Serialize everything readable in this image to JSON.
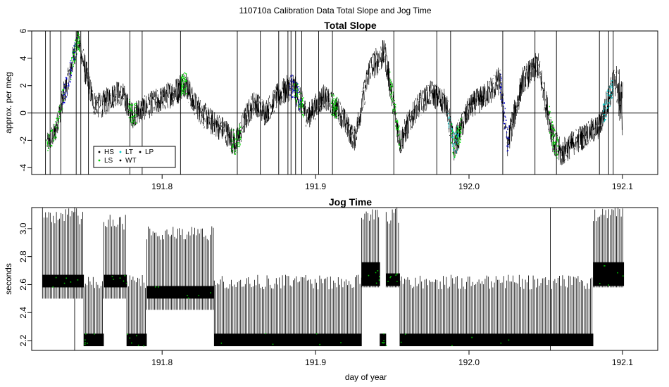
{
  "figure": {
    "title": "110710a   Calibration Data Total Slope and Jog Time"
  },
  "chart_data": [
    {
      "type": "line",
      "title": "Total Slope",
      "xlabel": "",
      "ylabel": "approx. per meg",
      "xlim": [
        191.715,
        192.123
      ],
      "ylim": [
        -4.5,
        6.0
      ],
      "x_ticks": [
        191.8,
        191.9,
        192.0,
        192.1
      ],
      "x_tick_labels": [
        "191.8",
        "191.9",
        "192.0",
        "192.1"
      ],
      "y_ticks": [
        -4,
        -2,
        0,
        2,
        4,
        6
      ],
      "y_tick_labels": [
        "-4",
        "-2",
        "0",
        "2",
        "4",
        "6"
      ],
      "reference_line_y": 0,
      "grid": false,
      "legend_position": "bottom-left",
      "legend": [
        {
          "name": "HS",
          "color": "#000000"
        },
        {
          "name": "LT",
          "color": "#00cccc"
        },
        {
          "name": "LP",
          "color": "#000000"
        },
        {
          "name": "LS",
          "color": "#00cc00"
        },
        {
          "name": "WT",
          "color": "#000000"
        }
      ],
      "series_color": "#000000",
      "highlight_colors": [
        "#00dd00",
        "#0000cc",
        "#00cccc"
      ],
      "envelope": {
        "x": [
          191.725,
          191.73,
          191.735,
          191.74,
          191.745,
          191.75,
          191.755,
          191.76,
          191.765,
          191.77,
          191.775,
          191.78,
          191.79,
          191.8,
          191.81,
          191.815,
          191.82,
          191.83,
          191.84,
          191.848,
          191.855,
          191.86,
          191.867,
          191.875,
          191.885,
          191.895,
          191.905,
          191.915,
          191.925,
          191.935,
          191.945,
          191.955,
          191.965,
          191.975,
          191.985,
          191.99,
          192.0,
          192.01,
          192.02,
          192.025,
          192.035,
          192.045,
          192.055,
          192.06,
          192.07,
          192.085,
          192.095,
          192.1
        ],
        "center": [
          -2.2,
          -1.5,
          1.0,
          3.0,
          5.5,
          3.0,
          0.8,
          0.5,
          1.0,
          1.5,
          1.2,
          -0.2,
          0.5,
          1.0,
          1.7,
          2.3,
          0.8,
          -0.5,
          -1.2,
          -2.3,
          -0.2,
          0.8,
          0.0,
          1.2,
          2.0,
          -0.3,
          1.2,
          0.2,
          -2.0,
          3.2,
          4.4,
          -2.2,
          0.3,
          1.5,
          0.7,
          -2.5,
          0.4,
          1.2,
          2.4,
          -2.2,
          2.4,
          3.5,
          -2.0,
          -3.0,
          -2.0,
          -1.0,
          2.6,
          0.3
        ],
        "half_width": [
          0.8,
          0.9,
          1.0,
          1.0,
          1.0,
          1.2,
          1.0,
          1.0,
          1.0,
          1.0,
          1.0,
          1.0,
          1.0,
          1.0,
          1.1,
          1.1,
          1.0,
          1.0,
          1.0,
          1.1,
          1.0,
          1.0,
          1.0,
          1.0,
          1.1,
          1.0,
          1.0,
          1.0,
          1.0,
          1.1,
          1.1,
          1.1,
          1.0,
          1.0,
          1.0,
          1.2,
          1.0,
          1.0,
          1.1,
          1.2,
          1.0,
          1.1,
          1.2,
          1.1,
          1.0,
          1.0,
          1.2,
          2.5
        ]
      },
      "highlight_segments": [
        {
          "x0": 191.724,
          "x1": 191.736,
          "color": "#00dd00"
        },
        {
          "x0": 191.735,
          "x1": 191.744,
          "color": "#0000cc"
        },
        {
          "x0": 191.74,
          "x1": 191.746,
          "color": "#00dd00"
        },
        {
          "x0": 191.778,
          "x1": 191.783,
          "color": "#00dd00"
        },
        {
          "x0": 191.812,
          "x1": 191.816,
          "color": "#00dd00"
        },
        {
          "x0": 191.845,
          "x1": 191.851,
          "color": "#00dd00"
        },
        {
          "x0": 191.883,
          "x1": 191.89,
          "color": "#0000cc"
        },
        {
          "x0": 191.886,
          "x1": 191.892,
          "color": "#00dd00"
        },
        {
          "x0": 191.91,
          "x1": 191.914,
          "color": "#00dd00"
        },
        {
          "x0": 191.948,
          "x1": 191.955,
          "color": "#00dd00"
        },
        {
          "x0": 191.986,
          "x1": 191.993,
          "color": "#00cccc"
        },
        {
          "x0": 191.988,
          "x1": 191.995,
          "color": "#00dd00"
        },
        {
          "x0": 192.02,
          "x1": 192.026,
          "color": "#0000cc"
        },
        {
          "x0": 192.052,
          "x1": 192.058,
          "color": "#00dd00"
        },
        {
          "x0": 192.087,
          "x1": 192.094,
          "color": "#00cccc"
        }
      ],
      "vertical_lines_x": [
        191.724,
        191.727,
        191.734,
        191.744,
        191.747,
        191.752,
        191.779,
        191.787,
        191.812,
        191.849,
        191.864,
        191.876,
        191.882,
        191.884,
        191.887,
        191.891,
        191.902,
        191.911,
        191.951,
        191.979,
        191.988,
        192.022,
        192.043,
        192.057,
        192.085,
        192.091,
        192.094
      ]
    },
    {
      "type": "line",
      "title": "Jog Time",
      "xlabel": "day of year",
      "ylabel": "seconds",
      "xlim": [
        191.715,
        192.123
      ],
      "ylim": [
        2.13,
        3.15
      ],
      "x_ticks": [
        191.8,
        191.9,
        192.0,
        192.1
      ],
      "x_tick_labels": [
        "191.8",
        "191.9",
        "192.0",
        "192.1"
      ],
      "y_ticks": [
        2.2,
        2.4,
        2.6,
        2.8,
        3.0
      ],
      "y_tick_labels": [
        "2.2",
        "2.4",
        "2.6",
        "2.8",
        "3.0"
      ],
      "grid": false,
      "series_color": "#000000",
      "segments": [
        {
          "x0": 191.722,
          "x1": 191.749,
          "low": 2.5,
          "high": 3.15,
          "band_low": 2.58,
          "band_high": 2.67
        },
        {
          "x0": 191.749,
          "x1": 191.762,
          "low": 2.16,
          "high": 2.67,
          "band_low": 2.16,
          "band_high": 2.25
        },
        {
          "x0": 191.762,
          "x1": 191.777,
          "low": 2.5,
          "high": 3.1,
          "band_low": 2.58,
          "band_high": 2.67
        },
        {
          "x0": 191.777,
          "x1": 191.79,
          "low": 2.16,
          "high": 2.67,
          "band_low": 2.16,
          "band_high": 2.25
        },
        {
          "x0": 191.79,
          "x1": 191.834,
          "low": 2.42,
          "high": 3.02,
          "band_low": 2.5,
          "band_high": 2.59
        },
        {
          "x0": 191.834,
          "x1": 191.93,
          "low": 2.16,
          "high": 2.67,
          "band_low": 2.16,
          "band_high": 2.25
        },
        {
          "x0": 191.93,
          "x1": 191.942,
          "low": 2.58,
          "high": 3.15,
          "band_low": 2.59,
          "band_high": 2.76
        },
        {
          "x0": 191.942,
          "x1": 191.946,
          "low": 2.16,
          "high": 2.25,
          "band_low": 2.16,
          "band_high": 2.25
        },
        {
          "x0": 191.946,
          "x1": 191.955,
          "low": 2.58,
          "high": 3.15,
          "band_low": 2.59,
          "band_high": 2.68
        },
        {
          "x0": 191.955,
          "x1": 192.081,
          "low": 2.16,
          "high": 2.67,
          "band_low": 2.16,
          "band_high": 2.25
        },
        {
          "x0": 192.081,
          "x1": 192.101,
          "low": 2.58,
          "high": 3.15,
          "band_low": 2.59,
          "band_high": 2.76
        }
      ],
      "vertical_lines_x": [
        191.743,
        192.053
      ]
    }
  ]
}
